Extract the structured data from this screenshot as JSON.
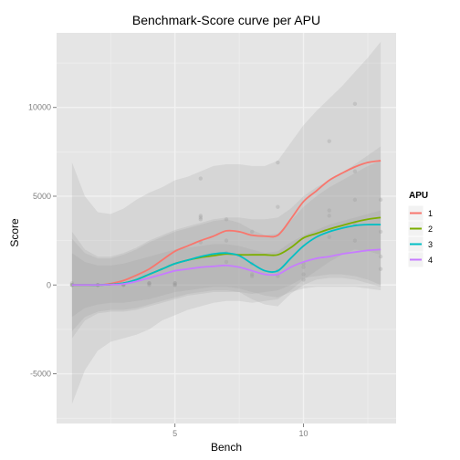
{
  "chart_data": {
    "type": "line",
    "title": "Benchmark-Score curve per APU",
    "xlabel": "Bench",
    "ylabel": "Score",
    "xlim": [
      0.4,
      13.6
    ],
    "ylim": [
      -7800,
      14200
    ],
    "x_ticks": [
      5,
      10
    ],
    "x_tick_labels": [
      "5",
      "10"
    ],
    "y_ticks": [
      -5000,
      0,
      5000,
      10000
    ],
    "y_tick_labels": [
      "-5000",
      "0",
      "5000",
      "10000"
    ],
    "grid": true,
    "smooth": true,
    "legend": {
      "title": "APU",
      "position": "right"
    },
    "series": [
      {
        "name": "1",
        "color": "#F8766D",
        "x": [
          1,
          1.5,
          2,
          2.5,
          3,
          3.5,
          4,
          4.5,
          5,
          5.5,
          6,
          6.5,
          7,
          7.5,
          8,
          8.5,
          9,
          9.5,
          10,
          10.5,
          11,
          11.5,
          12,
          12.5,
          13
        ],
        "y": [
          0,
          0,
          0,
          80,
          250,
          550,
          900,
          1400,
          1900,
          2200,
          2500,
          2750,
          3050,
          3000,
          2800,
          2750,
          2800,
          3700,
          4700,
          5300,
          5900,
          6300,
          6650,
          6900,
          7000
        ],
        "upper": [
          6900,
          5000,
          4100,
          4000,
          4300,
          4800,
          5200,
          5500,
          5900,
          6100,
          6400,
          6700,
          6800,
          6800,
          6700,
          6700,
          7000,
          8000,
          9000,
          9800,
          10500,
          11200,
          12000,
          12800,
          13700
        ],
        "lower": [
          -6700,
          -4800,
          -3700,
          -3200,
          -3000,
          -2800,
          -2500,
          -2000,
          -1700,
          -1400,
          -1200,
          -1000,
          -900,
          -900,
          -1000,
          -900,
          -800,
          -300,
          300,
          800,
          1300,
          1700,
          2000,
          1900,
          1700
        ],
        "points_x": [
          1,
          2,
          3,
          4,
          5,
          6,
          6,
          7,
          8,
          9,
          10,
          11,
          12,
          12,
          13
        ],
        "points_y": [
          100,
          0,
          50,
          100,
          100,
          6000,
          3800,
          3700,
          3000,
          6900,
          600,
          8100,
          10200,
          6400,
          4800
        ]
      },
      {
        "name": "2",
        "color": "#7CAE00",
        "x": [
          1,
          1.5,
          2,
          2.5,
          3,
          3.5,
          4,
          4.5,
          5,
          5.5,
          6,
          6.5,
          7,
          7.5,
          8,
          8.5,
          9,
          9.5,
          10,
          10.5,
          11,
          11.5,
          12,
          12.5,
          13
        ],
        "y": [
          0,
          0,
          0,
          30,
          100,
          300,
          600,
          900,
          1200,
          1400,
          1550,
          1650,
          1750,
          1700,
          1700,
          1700,
          1700,
          2100,
          2650,
          2900,
          3150,
          3350,
          3550,
          3700,
          3800
        ],
        "upper": [
          3000,
          2000,
          1600,
          1600,
          1800,
          2100,
          2500,
          2800,
          3100,
          3300,
          3500,
          3700,
          3800,
          3800,
          3700,
          3700,
          3800,
          4300,
          5000,
          5500,
          5900,
          6300,
          6800,
          7300,
          7800
        ],
        "lower": [
          -3000,
          -2000,
          -1600,
          -1500,
          -1500,
          -1400,
          -1200,
          -1000,
          -800,
          -600,
          -500,
          -400,
          -400,
          -400,
          -500,
          -400,
          -300,
          0,
          400,
          500,
          600,
          600,
          500,
          300,
          0
        ],
        "points_x": [
          1,
          2,
          3,
          4,
          5,
          6,
          7,
          8,
          9,
          10,
          11,
          12,
          13
        ],
        "points_y": [
          0,
          0,
          0,
          100,
          0,
          3900,
          2500,
          1200,
          4400,
          1000,
          4200,
          4800,
          3000
        ]
      },
      {
        "name": "3",
        "color": "#00BFC4",
        "x": [
          1,
          1.5,
          2,
          2.5,
          3,
          3.5,
          4,
          4.5,
          5,
          5.5,
          6,
          6.5,
          7,
          7.5,
          8,
          8.5,
          9,
          9.5,
          10,
          10.5,
          11,
          11.5,
          12,
          12.5,
          13
        ],
        "y": [
          0,
          0,
          0,
          30,
          100,
          300,
          600,
          900,
          1200,
          1400,
          1600,
          1750,
          1800,
          1650,
          1200,
          800,
          800,
          1500,
          2200,
          2700,
          3000,
          3200,
          3350,
          3400,
          3400
        ],
        "upper": [
          2600,
          1800,
          1500,
          1500,
          1700,
          2000,
          2400,
          2700,
          3000,
          3200,
          3400,
          3600,
          3700,
          3500,
          3100,
          2800,
          2900,
          3600,
          4400,
          5000,
          5500,
          5900,
          6300,
          6700,
          7000
        ],
        "lower": [
          -2600,
          -1800,
          -1500,
          -1400,
          -1400,
          -1300,
          -1100,
          -900,
          -700,
          -500,
          -400,
          -300,
          -300,
          -400,
          -800,
          -1100,
          -1200,
          -500,
          0,
          300,
          400,
          400,
          300,
          100,
          -100
        ],
        "points_x": [
          1,
          2,
          3,
          4,
          5,
          6,
          7,
          8,
          9,
          10,
          11,
          12,
          13
        ],
        "points_y": [
          0,
          0,
          0,
          100,
          0,
          3700,
          1800,
          600,
          800,
          1200,
          3900,
          3400,
          1600
        ]
      },
      {
        "name": "4",
        "color": "#C77CFF",
        "x": [
          1,
          1.5,
          2,
          2.5,
          3,
          3.5,
          4,
          4.5,
          5,
          5.5,
          6,
          6.5,
          7,
          7.5,
          8,
          8.5,
          9,
          9.5,
          10,
          10.5,
          11,
          11.5,
          12,
          12.5,
          13
        ],
        "y": [
          0,
          0,
          0,
          20,
          60,
          200,
          400,
          600,
          800,
          900,
          1000,
          1050,
          1100,
          1000,
          800,
          600,
          600,
          1000,
          1300,
          1500,
          1600,
          1750,
          1850,
          1950,
          2000
        ],
        "upper": [
          1800,
          1300,
          1100,
          1100,
          1200,
          1400,
          1600,
          1800,
          2000,
          2100,
          2200,
          2300,
          2300,
          2200,
          2000,
          1800,
          1900,
          2400,
          2800,
          3100,
          3400,
          3600,
          3800,
          4000,
          4200
        ],
        "lower": [
          -1800,
          -1300,
          -1100,
          -1000,
          -1000,
          -900,
          -800,
          -600,
          -400,
          -300,
          -200,
          -100,
          -100,
          -200,
          -400,
          -600,
          -700,
          -400,
          -200,
          -100,
          -100,
          -100,
          -100,
          -200,
          -300
        ],
        "points_x": [
          1,
          2,
          3,
          4,
          5,
          6,
          7,
          8,
          9,
          10,
          11,
          12,
          13
        ],
        "points_y": [
          0,
          0,
          0,
          0,
          100,
          2400,
          1300,
          500,
          500,
          300,
          2700,
          2500,
          900
        ]
      }
    ]
  }
}
